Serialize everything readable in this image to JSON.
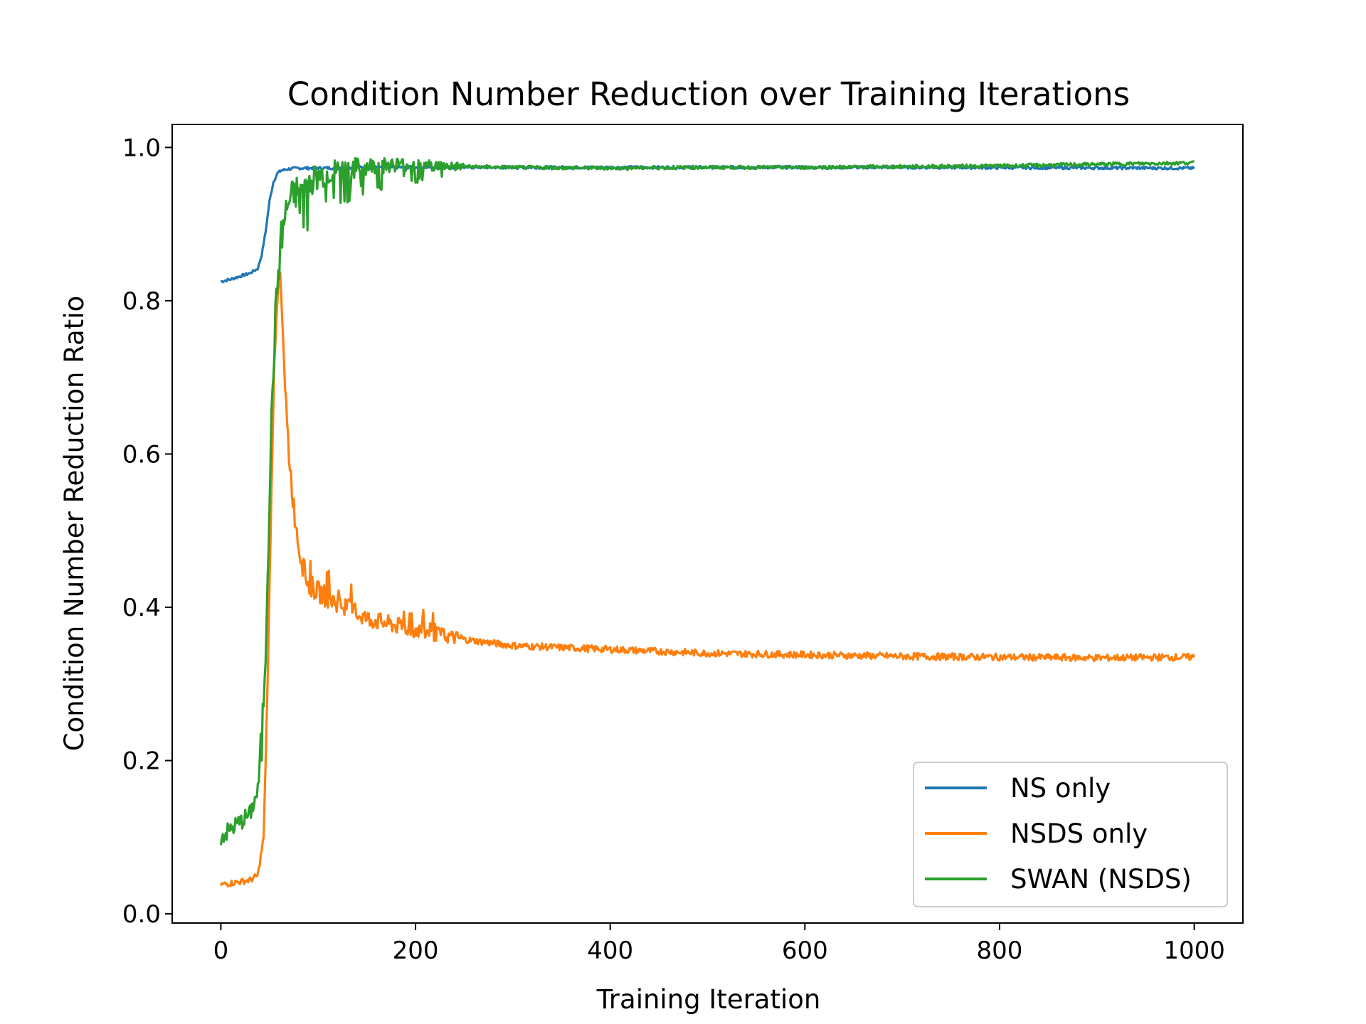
{
  "chart_data": {
    "type": "line",
    "title": "Condition Number Reduction over Training Iterations",
    "xlabel": "Training Iteration",
    "ylabel": "Condition Number Reduction Ratio",
    "xlim": [
      -50,
      1050
    ],
    "ylim": [
      -0.012,
      1.03
    ],
    "xticks": [
      0,
      200,
      400,
      600,
      800,
      1000
    ],
    "xtick_labels": [
      "0",
      "200",
      "400",
      "600",
      "800",
      "1000"
    ],
    "yticks": [
      0.0,
      0.2,
      0.4,
      0.6,
      0.8,
      1.0
    ],
    "ytick_labels": [
      "0.0",
      "0.2",
      "0.4",
      "0.6",
      "0.8",
      "1.0"
    ],
    "grid": false,
    "legend_position": "lower-right",
    "series": [
      {
        "name": "NS only",
        "color": "#1f77b4",
        "x": [
          0,
          10,
          20,
          30,
          38,
          42,
          46,
          50,
          54,
          58,
          62,
          70,
          80,
          100,
          150,
          200,
          300,
          500,
          700,
          1000
        ],
        "y": [
          0.825,
          0.828,
          0.832,
          0.836,
          0.842,
          0.86,
          0.89,
          0.93,
          0.955,
          0.966,
          0.97,
          0.972,
          0.973,
          0.973,
          0.974,
          0.974,
          0.974,
          0.974,
          0.974,
          0.973
        ]
      },
      {
        "name": "NSDS only",
        "color": "#ff7f0e",
        "x": [
          0,
          10,
          20,
          30,
          38,
          44,
          48,
          52,
          55,
          58,
          61,
          63,
          66,
          70,
          75,
          80,
          85,
          90,
          100,
          120,
          150,
          200,
          250,
          300,
          400,
          500,
          600,
          700,
          800,
          900,
          1000
        ],
        "y": [
          0.038,
          0.04,
          0.042,
          0.044,
          0.05,
          0.1,
          0.3,
          0.55,
          0.72,
          0.8,
          0.84,
          0.78,
          0.68,
          0.6,
          0.53,
          0.48,
          0.45,
          0.43,
          0.42,
          0.405,
          0.385,
          0.37,
          0.358,
          0.35,
          0.345,
          0.34,
          0.338,
          0.336,
          0.335,
          0.334,
          0.335
        ]
      },
      {
        "name": "SWAN (NSDS)",
        "color": "#2ca02c",
        "x": [
          0,
          10,
          20,
          30,
          38,
          42,
          46,
          50,
          54,
          58,
          62,
          66,
          70,
          80,
          90,
          100,
          120,
          150,
          180,
          200,
          250,
          300,
          400,
          500,
          600,
          700,
          800,
          900,
          1000
        ],
        "y": [
          0.1,
          0.11,
          0.12,
          0.13,
          0.16,
          0.22,
          0.35,
          0.55,
          0.72,
          0.82,
          0.88,
          0.91,
          0.93,
          0.945,
          0.955,
          0.962,
          0.97,
          0.975,
          0.978,
          0.977,
          0.975,
          0.974,
          0.973,
          0.974,
          0.974,
          0.975,
          0.976,
          0.978,
          0.98
        ]
      }
    ]
  }
}
